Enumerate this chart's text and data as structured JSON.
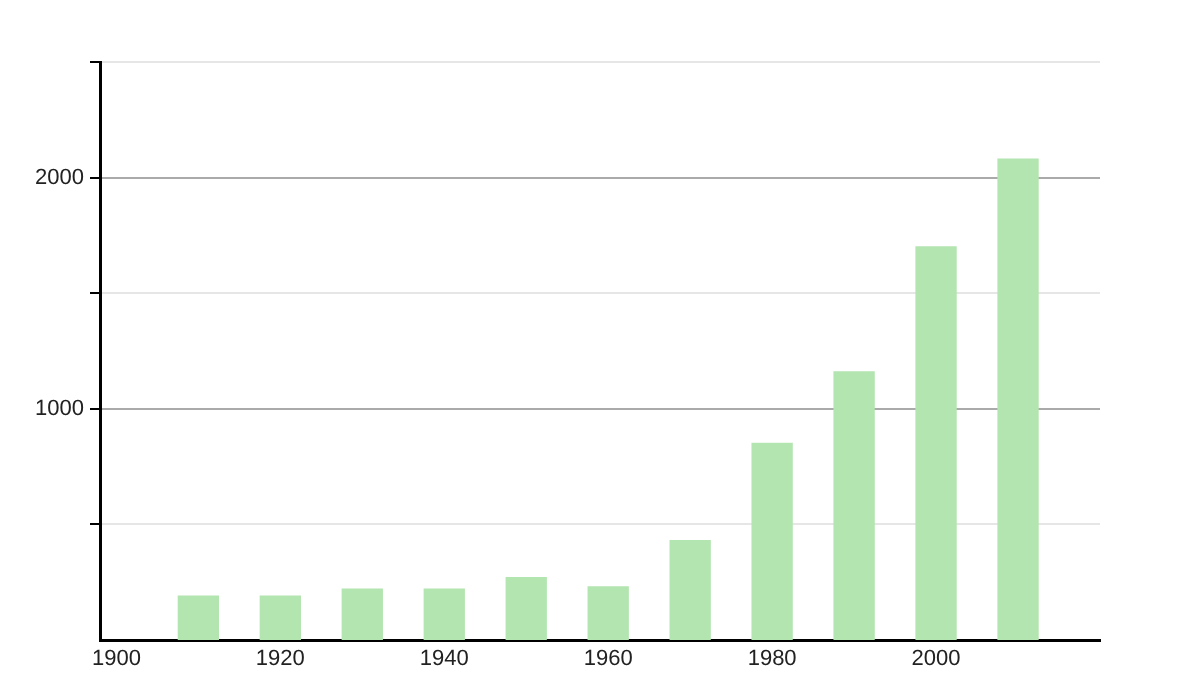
{
  "chart_data": {
    "type": "bar",
    "x": [
      1910,
      1920,
      1930,
      1940,
      1950,
      1960,
      1970,
      1980,
      1990,
      2000,
      2010
    ],
    "values": [
      190,
      190,
      220,
      220,
      270,
      230,
      430,
      850,
      1160,
      1700,
      2080
    ],
    "color": "#b3e5b0",
    "xlim": [
      1898,
      2020
    ],
    "xticks": [
      1900,
      1920,
      1940,
      1960,
      1980,
      2000
    ],
    "ylim": [
      0,
      2500
    ],
    "yticks": [
      {
        "value": 500,
        "label": null
      },
      1000,
      {
        "value": 1500,
        "label": null
      },
      2000,
      {
        "value": 2500,
        "label": null
      }
    ],
    "grid": "y",
    "legend": false
  }
}
